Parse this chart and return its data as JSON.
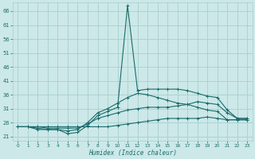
{
  "bg_color": "#cce8e8",
  "grid_color": "#aacece",
  "line_color": "#1a6b6b",
  "xlabel": "Humidex (Indice chaleur)",
  "x_ticks": [
    0,
    1,
    2,
    3,
    4,
    5,
    6,
    7,
    8,
    9,
    10,
    11,
    12,
    13,
    14,
    15,
    16,
    17,
    18,
    19,
    20,
    21,
    22,
    23
  ],
  "y_ticks": [
    21,
    26,
    31,
    36,
    41,
    46,
    51,
    56,
    61,
    66
  ],
  "xlim": [
    -0.5,
    23.5
  ],
  "ylim": [
    19.5,
    69
  ],
  "series": [
    [
      24.5,
      24.5,
      23.5,
      23.5,
      23.5,
      22.0,
      22.5,
      25.0,
      28.5,
      30.0,
      31.5,
      68.0,
      37.5,
      38.0,
      38.0,
      38.0,
      38.0,
      37.5,
      36.5,
      35.5,
      35.0,
      30.5,
      27.5,
      27.5
    ],
    [
      24.5,
      24.5,
      24.0,
      23.5,
      23.5,
      23.0,
      23.5,
      26.0,
      29.5,
      31.0,
      33.0,
      35.0,
      36.5,
      36.0,
      35.0,
      34.0,
      33.0,
      32.5,
      31.5,
      30.5,
      30.0,
      27.0,
      27.0,
      27.0
    ],
    [
      24.5,
      24.5,
      24.5,
      24.0,
      24.0,
      24.0,
      24.0,
      25.5,
      27.5,
      28.5,
      29.5,
      30.5,
      31.0,
      31.5,
      31.5,
      31.5,
      32.0,
      32.5,
      33.5,
      33.0,
      32.5,
      29.5,
      27.5,
      27.5
    ],
    [
      24.5,
      24.5,
      24.5,
      24.5,
      24.5,
      24.5,
      24.5,
      24.5,
      24.5,
      24.5,
      25.0,
      25.5,
      26.0,
      26.5,
      27.0,
      27.5,
      27.5,
      27.5,
      27.5,
      28.0,
      27.5,
      27.0,
      27.0,
      27.0
    ]
  ],
  "figsize": [
    3.2,
    2.0
  ],
  "dpi": 100
}
